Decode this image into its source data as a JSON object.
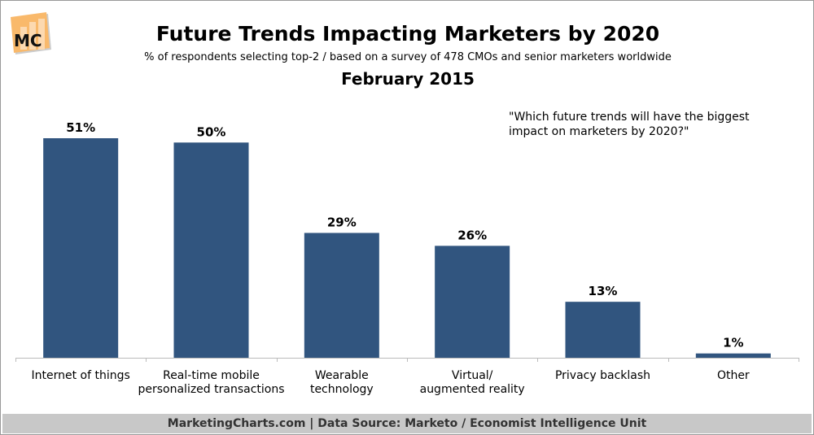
{
  "header": {
    "logo_text": "MC",
    "title": "Future Trends Impacting Marketers by 2020",
    "subtitle": "% of respondents selecting top-2 / based on a survey of 478 CMOs and senior marketers worldwide",
    "date": "February 2015"
  },
  "question": "\"Which future trends will have the biggest impact on marketers by 2020?\"",
  "footer": "MarketingCharts.com | Data Source: Marketo / Economist Intelligence Unit",
  "colors": {
    "bar": "#31557f",
    "footer": "#c8c8c8",
    "logo": "#f9b96b"
  },
  "chart_data": {
    "type": "bar",
    "title": "Future Trends Impacting Marketers by 2020",
    "categories": [
      [
        "Internet of things"
      ],
      [
        "Real-time mobile",
        "personalized transactions"
      ],
      [
        "Wearable",
        "technology"
      ],
      [
        "Virtual/",
        "augmented reality"
      ],
      [
        "Privacy backlash"
      ],
      [
        "Other"
      ]
    ],
    "values": [
      51,
      50,
      29,
      26,
      13,
      1
    ],
    "data_labels": [
      "51%",
      "50%",
      "29%",
      "26%",
      "13%",
      "1%"
    ],
    "xlabel": "",
    "ylabel": "",
    "ylim": [
      0,
      55
    ],
    "grid": false
  }
}
